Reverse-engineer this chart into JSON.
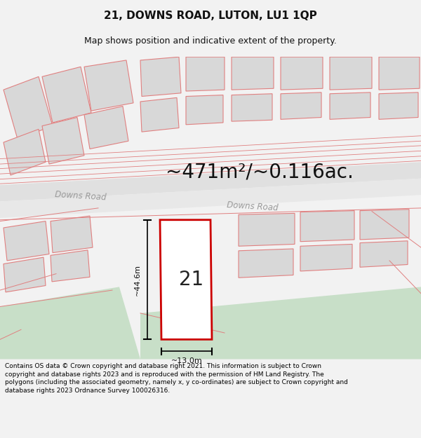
{
  "title": "21, DOWNS ROAD, LUTON, LU1 1QP",
  "subtitle": "Map shows position and indicative extent of the property.",
  "area_label": "~471m²/~0.116ac.",
  "width_label": "~13.0m",
  "height_label": "~44.6m",
  "number_label": "21",
  "road_label1": "Downs Road",
  "road_label2": "Downs Road",
  "copyright_text": "Contains OS data © Crown copyright and database right 2021. This information is subject to Crown copyright and database rights 2023 and is reproduced with the permission of HM Land Registry. The polygons (including the associated geometry, namely x, y co-ordinates) are subject to Crown copyright and database rights 2023 Ordnance Survey 100026316.",
  "bg_color": "#f2f2f2",
  "map_bg": "#f8f8f8",
  "building_fill": "#d8d8d8",
  "building_edge": "#e08080",
  "highlight_edge": "#cc0000",
  "highlight_fill": "#ffffff",
  "green_fill": "#c8dfc8",
  "road_fill": "#e4e4e4",
  "title_fontsize": 11,
  "subtitle_fontsize": 9,
  "area_fontsize": 20,
  "copy_fontsize": 6.5
}
